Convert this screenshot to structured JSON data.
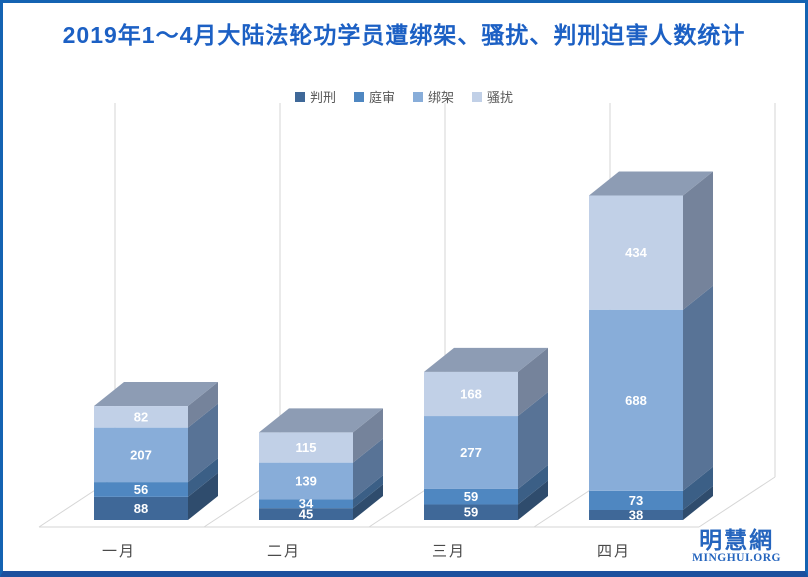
{
  "title": "2019年1～4月大陆法轮功学员遭绑架、骚扰、判刑迫害人数统计",
  "logo": {
    "chinese": "明慧網",
    "domain": "MINGHUI.ORG"
  },
  "colors": {
    "title": "#1C60C4",
    "border": "#1463B2",
    "border_bottom": "#1D509E",
    "logo": "#2565BE",
    "gridline": "#D6D6D6",
    "category_label": "#4A4A4A",
    "legend_text": "#595959",
    "data_label": "#FFFFFF"
  },
  "chart_data": {
    "type": "bar",
    "subtype": "3d-stacked-column",
    "title": "2019年1～4月大陆法轮功学员遭绑架、骚扰、判刑迫害人数统计",
    "categories": [
      "一月",
      "二月",
      "三月",
      "四月"
    ],
    "series": [
      {
        "name": "判刑",
        "values": [
          88,
          45,
          59,
          38
        ],
        "color": "#3F6898",
        "side_color": "#2F4C6D"
      },
      {
        "name": "庭审",
        "values": [
          56,
          34,
          59,
          73
        ],
        "color": "#4F87C1",
        "side_color": "#3B5F86"
      },
      {
        "name": "绑架",
        "values": [
          207,
          139,
          277,
          688
        ],
        "color": "#88ADD9",
        "side_color": "#587396"
      },
      {
        "name": "骚扰",
        "values": [
          82,
          115,
          168,
          434
        ],
        "color": "#C1D0E7",
        "side_color": "#75839B",
        "top_color": "#8D9CB4"
      }
    ],
    "totals": [
      433,
      333,
      563,
      1233
    ],
    "legend_position": "top-center",
    "gridlines": "vertical-category-only",
    "data_labels": true,
    "xlabel": "",
    "ylabel": ""
  }
}
